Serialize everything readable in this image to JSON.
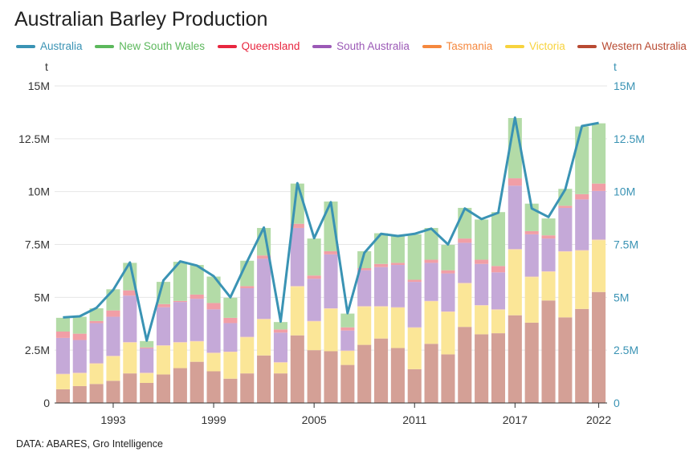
{
  "title": "Australian Barley Production",
  "source": "DATA: ABARES, Gro Intelligence",
  "left_unit": "t",
  "right_unit": "t",
  "chart_data": {
    "type": "bar",
    "title": "Australian Barley Production",
    "ylim": [
      0,
      15000000
    ],
    "y_ticks": [
      "0",
      "2.5M",
      "5M",
      "7.5M",
      "10M",
      "12.5M",
      "15M"
    ],
    "x_ticks": [
      "1993",
      "1999",
      "2005",
      "2011",
      "2017",
      "2022"
    ],
    "x_tick_years": [
      1993,
      1999,
      2005,
      2011,
      2017,
      2022
    ],
    "years": [
      1990,
      1991,
      1992,
      1993,
      1994,
      1995,
      1996,
      1997,
      1998,
      1999,
      2000,
      2001,
      2002,
      2003,
      2004,
      2005,
      2006,
      2007,
      2008,
      2009,
      2010,
      2011,
      2012,
      2013,
      2014,
      2015,
      2016,
      2017,
      2018,
      2019,
      2020,
      2021,
      2022
    ],
    "line_series": {
      "name": "Australia",
      "color": "#3a93b4",
      "values": [
        4050000,
        4100000,
        4500000,
        5350000,
        6650000,
        2950000,
        5800000,
        6700000,
        6500000,
        6000000,
        5000000,
        6700000,
        8300000,
        3850000,
        10400000,
        7800000,
        9500000,
        4250000,
        7100000,
        8000000,
        7900000,
        8000000,
        8250000,
        7500000,
        9200000,
        8700000,
        9000000,
        13500000,
        9200000,
        8800000,
        10100000,
        13100000,
        13250000
      ]
    },
    "series": [
      {
        "name": "Western Australia",
        "color": "#d4a096",
        "values": [
          650000,
          800000,
          900000,
          1050000,
          1400000,
          950000,
          1350000,
          1650000,
          1950000,
          1500000,
          1150000,
          1400000,
          2250000,
          1400000,
          3200000,
          2500000,
          2450000,
          1800000,
          2750000,
          3050000,
          2600000,
          1600000,
          2800000,
          2300000,
          3600000,
          3250000,
          3300000,
          4150000,
          3800000,
          4850000,
          4050000,
          4450000,
          5250000
        ]
      },
      {
        "name": "Victoria",
        "color": "#fbe697",
        "values": [
          700000,
          600000,
          950000,
          1150000,
          1450000,
          450000,
          1350000,
          1200000,
          950000,
          850000,
          1250000,
          1700000,
          1700000,
          500000,
          2300000,
          1350000,
          2000000,
          650000,
          1800000,
          1500000,
          1900000,
          1950000,
          2000000,
          2000000,
          2050000,
          1350000,
          1100000,
          3100000,
          2150000,
          1350000,
          3100000,
          2750000,
          2450000
        ]
      },
      {
        "name": "Tasmania",
        "color": "#fbd4aa",
        "values": [
          30000,
          30000,
          30000,
          30000,
          30000,
          30000,
          30000,
          30000,
          30000,
          30000,
          30000,
          30000,
          30000,
          30000,
          30000,
          30000,
          30000,
          30000,
          30000,
          30000,
          30000,
          30000,
          30000,
          30000,
          30000,
          30000,
          30000,
          30000,
          30000,
          30000,
          30000,
          30000,
          30000
        ]
      },
      {
        "name": "South Australia",
        "color": "#c5a9d8",
        "values": [
          1700000,
          1550000,
          1900000,
          1850000,
          2200000,
          1150000,
          1800000,
          1900000,
          2000000,
          2050000,
          1350000,
          2300000,
          2850000,
          1400000,
          2750000,
          2000000,
          2550000,
          950000,
          1700000,
          1850000,
          2000000,
          2150000,
          1800000,
          1800000,
          1900000,
          1950000,
          1750000,
          3000000,
          2000000,
          1550000,
          2050000,
          2400000,
          2300000
        ]
      },
      {
        "name": "Queensland",
        "color": "#f19ea6",
        "values": [
          300000,
          300000,
          100000,
          300000,
          250000,
          50000,
          150000,
          50000,
          200000,
          300000,
          250000,
          100000,
          150000,
          150000,
          200000,
          150000,
          150000,
          150000,
          100000,
          150000,
          100000,
          100000,
          150000,
          150000,
          200000,
          200000,
          300000,
          350000,
          150000,
          150000,
          100000,
          250000,
          350000
        ]
      },
      {
        "name": "New South Wales",
        "color": "#b3dba7",
        "values": [
          650000,
          800000,
          600000,
          1000000,
          1300000,
          300000,
          1050000,
          1850000,
          1400000,
          1250000,
          950000,
          1200000,
          1300000,
          350000,
          1900000,
          1750000,
          2350000,
          650000,
          800000,
          1450000,
          1300000,
          2150000,
          1500000,
          1200000,
          1450000,
          1900000,
          2550000,
          2850000,
          1300000,
          800000,
          800000,
          3200000,
          2850000
        ]
      }
    ]
  },
  "legend": [
    {
      "label": "Australia",
      "color": "#3a93b4"
    },
    {
      "label": "New South Wales",
      "color": "#5cb85c"
    },
    {
      "label": "Queensland",
      "color": "#e8263f"
    },
    {
      "label": "South Australia",
      "color": "#9b59b6"
    },
    {
      "label": "Tasmania",
      "color": "#f5883e"
    },
    {
      "label": "Victoria",
      "color": "#f7d33e"
    },
    {
      "label": "Western Australia",
      "color": "#b84a32"
    }
  ]
}
